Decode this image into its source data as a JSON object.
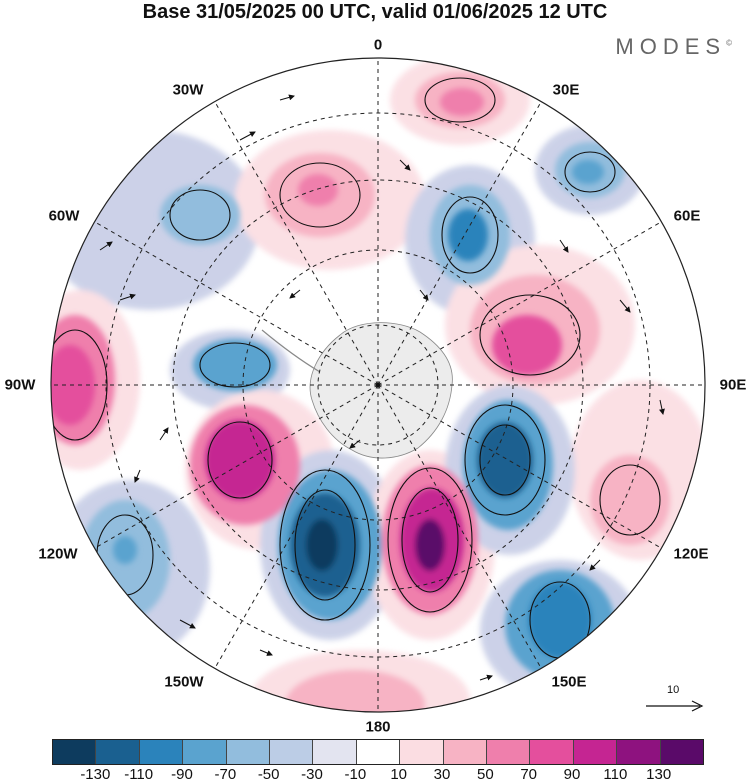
{
  "title": "Base 31/05/2025 00 UTC, valid 01/06/2025 12 UTC",
  "brand": "MODES",
  "brand_mark": "©",
  "longitude_labels": {
    "top": "0",
    "top_right": "30E",
    "right_upper": "60E",
    "right": "90E",
    "right_lower": "120E",
    "bottom_right": "150E",
    "bottom": "180",
    "bottom_left": "150W",
    "left_lower": "120W",
    "left": "90W",
    "left_upper": "60W",
    "top_left": "30W"
  },
  "reference_vector_label": "10",
  "colorbar": {
    "colors": [
      "#0d3b5e",
      "#1a6090",
      "#2b83bb",
      "#5aa3cf",
      "#92bddd",
      "#bccde6",
      "#e3e4f0",
      "#ffffff",
      "#fbdde2",
      "#f7b3c4",
      "#ef7fac",
      "#e44f9d",
      "#c52592",
      "#8e127f",
      "#5a0a69"
    ],
    "labels": [
      "-130",
      "-110",
      "-90",
      "-70",
      "-50",
      "-30",
      "-10",
      "10",
      "30",
      "50",
      "70",
      "90",
      "110",
      "130"
    ]
  }
}
